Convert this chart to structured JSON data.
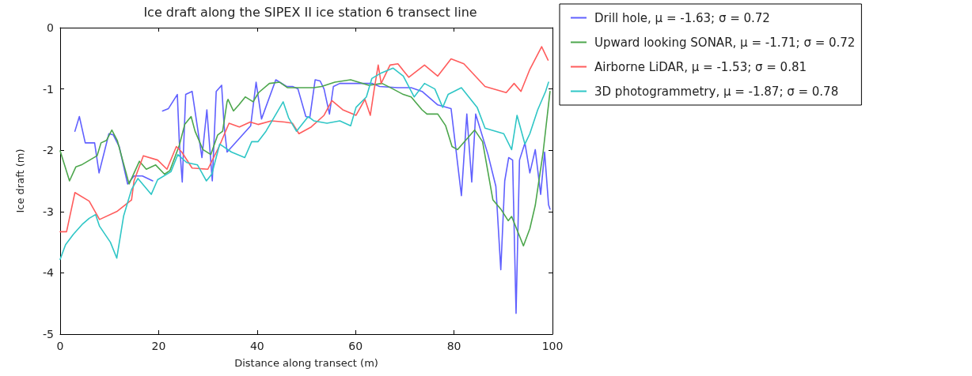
{
  "chart_data": {
    "type": "line",
    "title": "Ice draft along the SIPEX II ice station 6 transect line",
    "xlabel": "Distance along transect (m)",
    "ylabel": "Ice draft (m)",
    "xlim": [
      0,
      100
    ],
    "xticks": [
      0,
      20,
      40,
      60,
      80,
      100
    ],
    "ylim": [
      -5,
      0
    ],
    "yticks": [
      -5,
      -4,
      -3,
      -2,
      -1,
      0
    ],
    "grid": false,
    "legend": "right",
    "marker": "none",
    "line_style": "solid",
    "series": [
      {
        "name": "Drill hole, μ = -1.63; σ = 0.72",
        "color": "#6060ff",
        "x": [
          3,
          3.9,
          5.1,
          7,
          7.9,
          9.9,
          10.8,
          12,
          13.7,
          15,
          16.7,
          18.8,
          19.8,
          20.8,
          22,
          23.8,
          24.2,
          24.8,
          25.5,
          26.8,
          28.8,
          29.8,
          30.9,
          31.7,
          32.8,
          33.3,
          33.9,
          38.7,
          39.8,
          40.9,
          43.8,
          46,
          47.2,
          48.3,
          49.9,
          50.7,
          51.8,
          52.8,
          53.6,
          54.7,
          55.5,
          56.8,
          63.3,
          64.9,
          68.6,
          71.3,
          73.5,
          76.7,
          79.4,
          80.2,
          81.5,
          82.6,
          83.6,
          84.4,
          86.9,
          88.5,
          89.5,
          90.3,
          91.1,
          91.9,
          92.6,
          93.3,
          94.4,
          95.4,
          96.5,
          97.6,
          98.4,
          99.2,
          99.5
        ],
        "values": [
          -1.69,
          -1.45,
          -1.88,
          -1.88,
          -2.37,
          -1.73,
          -1.75,
          -1.94,
          -2.55,
          -2.42,
          -2.42,
          -2.5,
          null,
          -1.36,
          -1.32,
          -1.09,
          -1.86,
          -2.52,
          -1.09,
          -1.04,
          -2.12,
          -1.34,
          -2.5,
          -1.04,
          -0.94,
          -1.6,
          -2.03,
          -1.6,
          -0.89,
          -1.49,
          -0.85,
          -0.96,
          -0.96,
          -1,
          -1.45,
          -1.47,
          -0.85,
          -0.87,
          -1,
          -1.41,
          -0.96,
          -0.91,
          -0.91,
          -0.96,
          -0.98,
          -0.98,
          -1.04,
          -1.26,
          -1.32,
          -1.86,
          -2.74,
          -1.41,
          -2.52,
          -1.41,
          -2.07,
          -2.59,
          -3.95,
          -2.5,
          -2.12,
          -2.16,
          -4.66,
          -2.16,
          -1.88,
          -2.37,
          -1.99,
          -2.72,
          -2.03,
          -2.89,
          -2.96
        ]
      },
      {
        "name": "Upward looking SONAR, μ = -1.71; σ = 0.72",
        "color": "#4ca64c",
        "x": [
          0,
          1.9,
          3.2,
          4.3,
          7.5,
          8.3,
          9.4,
          10.5,
          11.6,
          14,
          16.1,
          17.5,
          19.4,
          21.2,
          22.3,
          24.2,
          25.3,
          26.6,
          27.4,
          29,
          30.6,
          32,
          33,
          33.9,
          34.1,
          35.2,
          36.3,
          37.6,
          39.2,
          40.3,
          42.5,
          44.6,
          46.2,
          49.9,
          51.5,
          53.1,
          55.8,
          59,
          62.7,
          65.4,
          67.6,
          69.7,
          71.3,
          73.5,
          74.5,
          76.7,
          78.3,
          79.6,
          80.7,
          84.2,
          85.8,
          87.9,
          89.5,
          91,
          91.7,
          94.1,
          95.4,
          96.5,
          98.1,
          99.5
        ],
        "values": [
          -2.01,
          -2.5,
          -2.27,
          -2.24,
          -2.09,
          -1.88,
          -1.84,
          -1.67,
          -1.84,
          -2.55,
          -2.18,
          -2.31,
          -2.24,
          -2.39,
          -2.33,
          -1.92,
          -1.58,
          -1.45,
          -1.69,
          -1.99,
          -2.07,
          -1.75,
          -1.69,
          -1.21,
          -1.17,
          -1.36,
          -1.26,
          -1.13,
          -1.21,
          -1.06,
          -0.91,
          -0.89,
          -0.98,
          -0.98,
          -0.98,
          -0.96,
          -0.89,
          -0.85,
          -0.94,
          -0.91,
          -1,
          -1.09,
          -1.13,
          -1.34,
          -1.41,
          -1.41,
          -1.6,
          -1.94,
          -1.99,
          -1.67,
          -1.86,
          -2.81,
          -2.96,
          -3.15,
          -3.08,
          -3.56,
          -3.28,
          -2.9,
          -2.03,
          -1.04
        ]
      },
      {
        "name": "Airborne LiDAR, μ = -1.53; σ = 0.81",
        "color": "#ff5c5c",
        "x": [
          0,
          1.3,
          3,
          5.9,
          8,
          11.5,
          14.5,
          15,
          16.9,
          19.8,
          21.7,
          23.6,
          24.7,
          26.8,
          30,
          32.4,
          34.3,
          36.4,
          38.6,
          40.2,
          42.9,
          45.6,
          47.2,
          48.5,
          51,
          53.6,
          55.2,
          57.4,
          60.1,
          61.9,
          63,
          63.8,
          64.6,
          65.2,
          67,
          68.6,
          70.8,
          74,
          76.7,
          79.4,
          82,
          86.3,
          90.6,
          92.2,
          93.6,
          95.4,
          97.8,
          99.1
        ],
        "values": [
          -3.33,
          -3.33,
          -2.69,
          -2.83,
          -3.13,
          -3,
          -2.81,
          -2.5,
          -2.09,
          -2.16,
          -2.31,
          -1.94,
          -2.03,
          -2.29,
          -2.31,
          -1.92,
          -1.56,
          -1.62,
          -1.54,
          -1.58,
          -1.52,
          -1.54,
          -1.56,
          -1.73,
          -1.62,
          -1.43,
          -1.19,
          -1.34,
          -1.43,
          -1.17,
          -1.43,
          -1,
          -0.61,
          -0.91,
          -0.61,
          -0.59,
          -0.81,
          -0.61,
          -0.79,
          -0.51,
          -0.59,
          -0.96,
          -1.06,
          -0.91,
          -1.04,
          -0.68,
          -0.31,
          -0.53
        ]
      },
      {
        "name": "3D photogrammetry, μ = -1.87; σ = 0.78",
        "color": "#2fc6c6",
        "x": [
          0,
          1.1,
          2.7,
          4.6,
          5.9,
          7.2,
          8,
          10.2,
          11.5,
          12.9,
          14.5,
          15.8,
          18.5,
          19.8,
          22.5,
          23.9,
          25.7,
          27.9,
          29.7,
          30.8,
          32.4,
          34.8,
          37.5,
          38.9,
          40.2,
          41.8,
          43.4,
          45.3,
          46.4,
          48,
          50.4,
          51.5,
          54.2,
          56.8,
          59,
          60.1,
          62.2,
          63.3,
          65.2,
          67.6,
          69.7,
          71.9,
          74,
          76.1,
          77.7,
          78.8,
          81.5,
          84.7,
          86.3,
          90.1,
          91.7,
          92.8,
          94.4,
          95.4,
          97,
          98.6,
          99.2
        ],
        "values": [
          -3.78,
          -3.54,
          -3.37,
          -3.2,
          -3.11,
          -3.05,
          -3.24,
          -3.5,
          -3.76,
          -3.07,
          -2.64,
          -2.46,
          -2.72,
          -2.48,
          -2.35,
          -2.07,
          -2.2,
          -2.24,
          -2.5,
          -2.39,
          -1.9,
          -2.03,
          -2.12,
          -1.86,
          -1.86,
          -1.69,
          -1.47,
          -1.21,
          -1.47,
          -1.69,
          -1.45,
          -1.52,
          -1.56,
          -1.52,
          -1.6,
          -1.3,
          -1.13,
          -0.83,
          -0.74,
          -0.66,
          -0.79,
          -1.13,
          -0.91,
          -1,
          -1.3,
          -1.09,
          -0.98,
          -1.3,
          -1.64,
          -1.73,
          -1.99,
          -1.43,
          -1.9,
          -1.73,
          -1.34,
          -1.04,
          -0.89
        ]
      }
    ]
  }
}
